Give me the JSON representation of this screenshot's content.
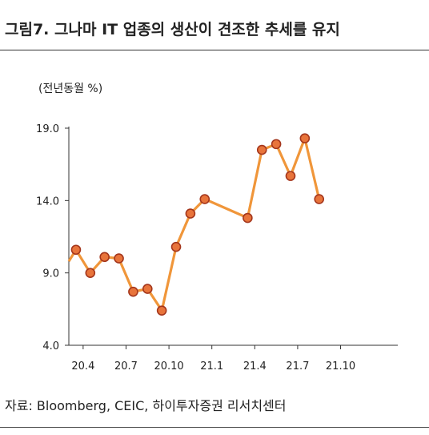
{
  "header": {
    "title": "그림7. 그나마 IT 업종의 생산이 견조한 추세를 유지"
  },
  "footer": {
    "source": "자료: Bloomberg, CEIC, 하이투자증권 리서치센터"
  },
  "chart_data": {
    "type": "line",
    "unit_label": "(전년동월 %)",
    "ylim": [
      4.0,
      19.0
    ],
    "yticks": [
      "4.0",
      "9.0",
      "14.0",
      "19.0"
    ],
    "xlim": [
      0,
      23
    ],
    "xtick_positions": [
      1,
      4,
      7,
      10,
      13,
      16,
      19
    ],
    "xticks": [
      "20.4",
      "20.7",
      "20.10",
      "21.1",
      "21.4",
      "21.7",
      "21.10"
    ],
    "grid": false,
    "line_color": "#f0963a",
    "marker_fill": "#e8743b",
    "marker_stroke": "#a4361c",
    "series": [
      {
        "x": [
          0,
          0.5,
          1.5,
          2.5,
          3.5,
          4.5,
          5.5,
          6.5,
          7.5,
          8.5,
          9.5,
          12.5,
          13.5,
          14.5,
          15.5,
          16.5,
          17.5,
          18.5
        ],
        "values": [
          9.8,
          10.6,
          9.0,
          10.1,
          10.0,
          7.7,
          7.9,
          6.4,
          10.8,
          13.1,
          14.1,
          12.8,
          17.5,
          17.9,
          15.7,
          18.3,
          14.1,
          null
        ],
        "markers": [
          false,
          true,
          true,
          true,
          true,
          true,
          true,
          true,
          true,
          true,
          true,
          true,
          true,
          true,
          true,
          true,
          true,
          true
        ]
      }
    ]
  }
}
